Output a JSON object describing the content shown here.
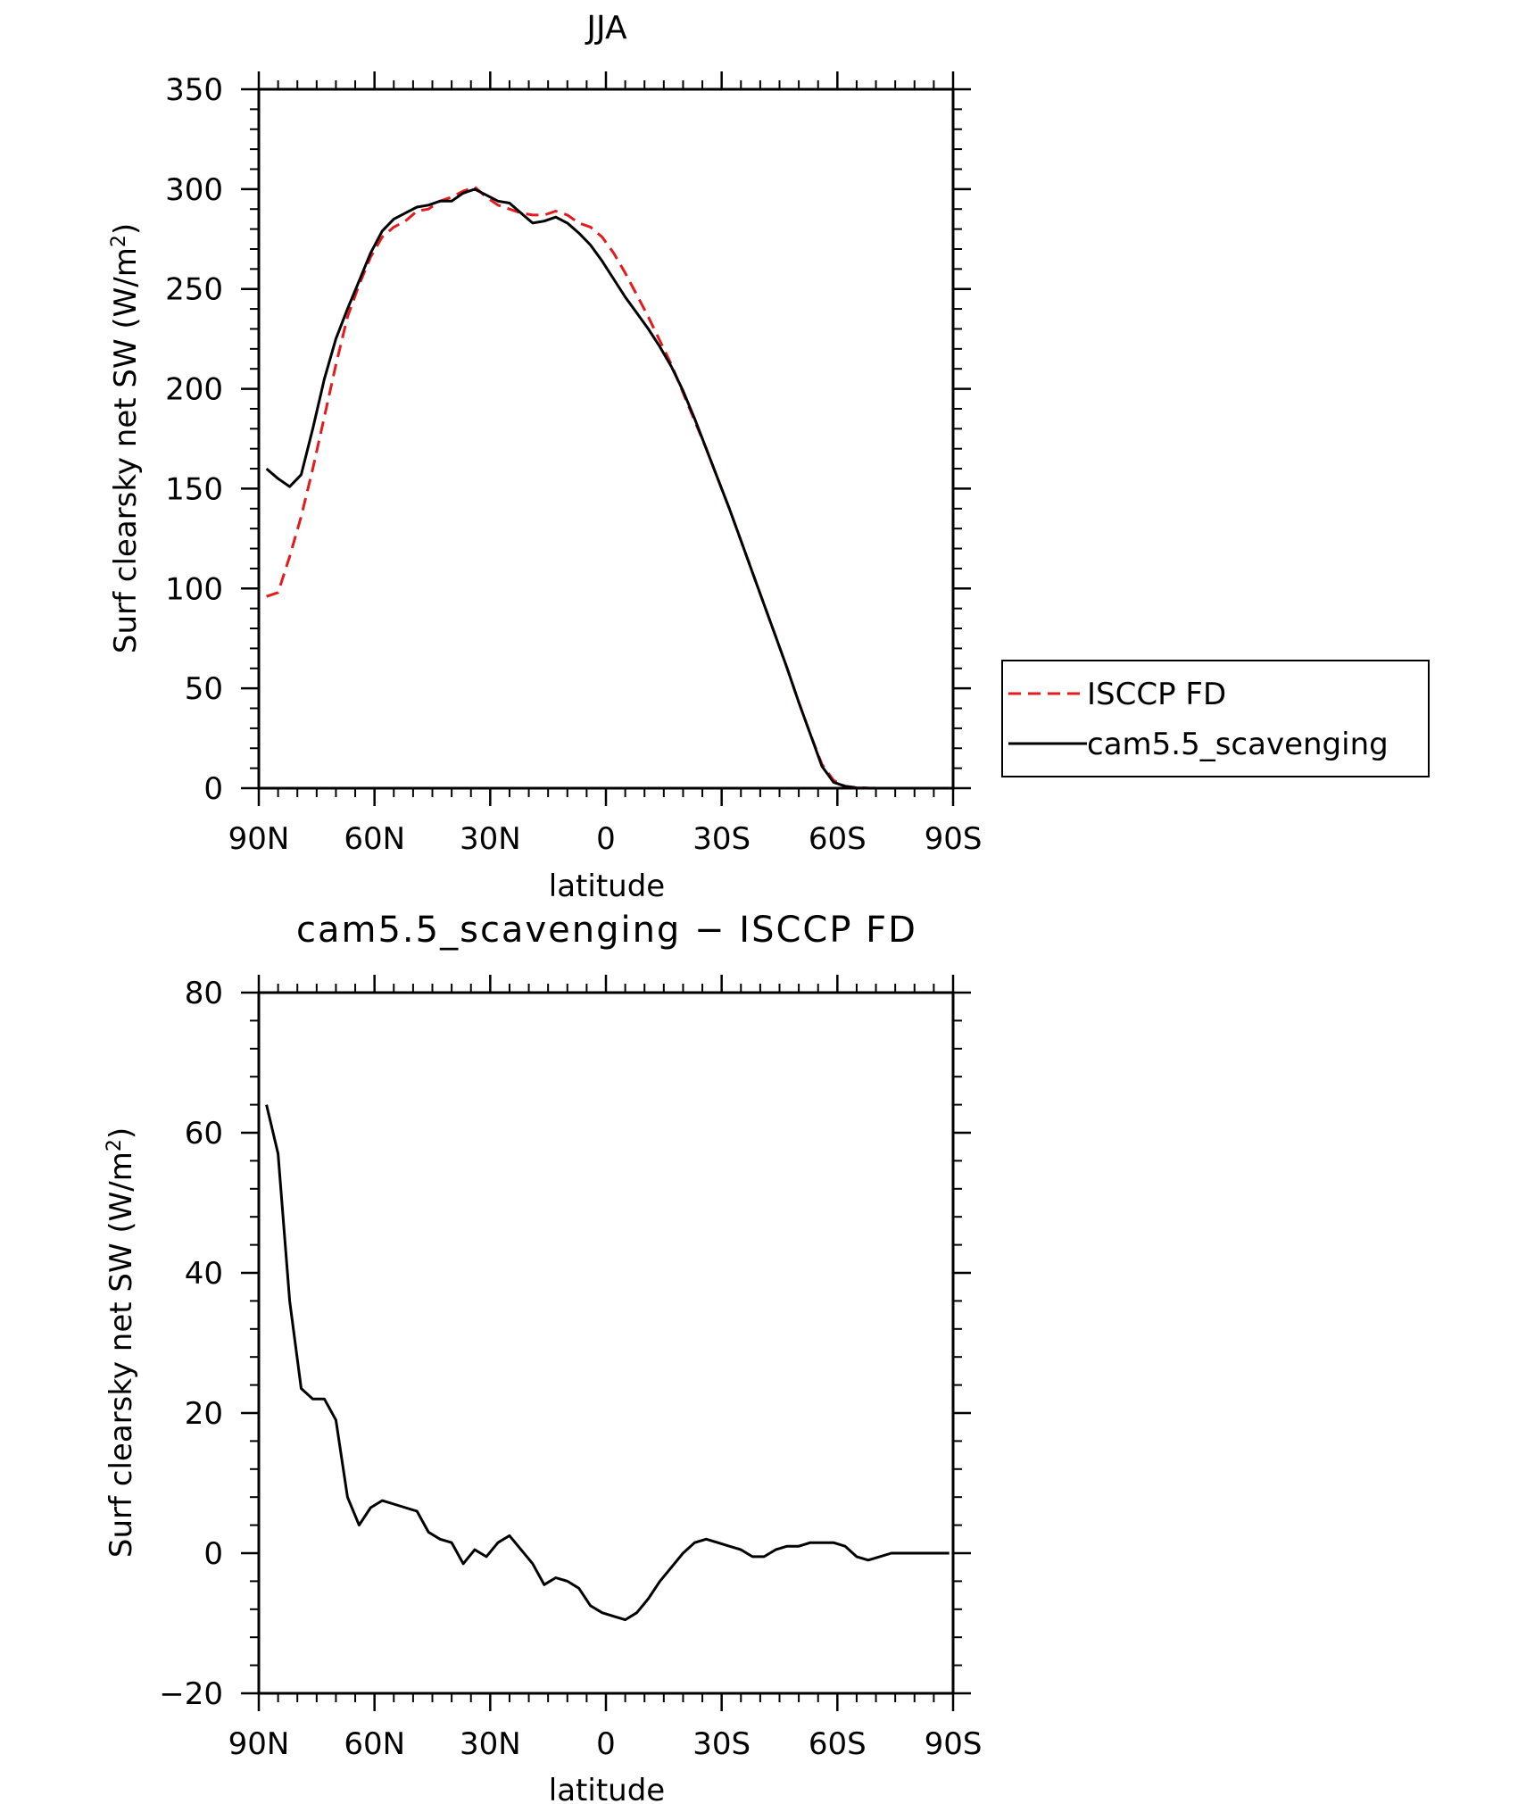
{
  "chart_data": [
    {
      "type": "line",
      "title": "JJA",
      "xlabel": "latitude",
      "ylabel_main": "Surf clearsky net SW (W/m",
      "ylabel_sup": "2",
      "ylabel_close": ")",
      "xlim": [
        90,
        -90
      ],
      "ylim": [
        0,
        350
      ],
      "x_ticks": [
        {
          "v": 90,
          "label": "90N"
        },
        {
          "v": 60,
          "label": "60N"
        },
        {
          "v": 30,
          "label": "30N"
        },
        {
          "v": 0,
          "label": "0"
        },
        {
          "v": -30,
          "label": "30S"
        },
        {
          "v": -60,
          "label": "60S"
        },
        {
          "v": -90,
          "label": "90S"
        }
      ],
      "y_ticks": [
        0,
        50,
        100,
        150,
        200,
        250,
        300,
        350
      ],
      "legend_position": "right",
      "series": [
        {
          "name": "ISCCP FD",
          "color": "#e41a1c",
          "dash": true,
          "x": [
            88,
            85,
            82,
            79,
            76,
            73,
            70,
            67,
            64,
            61,
            58,
            55,
            52,
            49,
            46,
            43,
            40,
            37,
            34,
            31,
            28,
            25,
            22,
            19,
            16,
            13,
            10,
            7,
            4,
            1,
            -2,
            -5,
            -8,
            -11,
            -14,
            -17,
            -20,
            -23,
            -26,
            -29,
            -32,
            -35,
            -38,
            -41,
            -44,
            -47,
            -50,
            -53,
            -56,
            -59,
            -62,
            -65,
            -68,
            -71,
            -74,
            -77,
            -80,
            -83,
            -86,
            -89
          ],
          "y": [
            96,
            98,
            116,
            136,
            160,
            186,
            212,
            236,
            252,
            266,
            276,
            281,
            284,
            289,
            290,
            294,
            296,
            299,
            301,
            296,
            292,
            290,
            288,
            287,
            287,
            289,
            287,
            283,
            281,
            276,
            268,
            258,
            247,
            236,
            224,
            212,
            198,
            184,
            170,
            155,
            140,
            124,
            108,
            92,
            76,
            60,
            43,
            27,
            12,
            4,
            1,
            0.3,
            0.1,
            0,
            0,
            0,
            0,
            0,
            0,
            0
          ]
        },
        {
          "name": "cam5.5_scavenging",
          "color": "#000000",
          "dash": false,
          "x": [
            88,
            85,
            82,
            79,
            76,
            73,
            70,
            67,
            64,
            61,
            58,
            55,
            52,
            49,
            46,
            43,
            40,
            37,
            34,
            31,
            28,
            25,
            22,
            19,
            16,
            13,
            10,
            7,
            4,
            1,
            -2,
            -5,
            -8,
            -11,
            -14,
            -17,
            -20,
            -23,
            -26,
            -29,
            -32,
            -35,
            -38,
            -41,
            -44,
            -47,
            -50,
            -53,
            -56,
            -59,
            -62,
            -65,
            -68,
            -71,
            -74,
            -77,
            -80,
            -83,
            -86,
            -89
          ],
          "y": [
            160,
            155,
            151,
            157,
            180,
            205,
            225,
            240,
            254,
            268,
            279,
            285,
            288,
            291,
            292,
            294,
            294,
            298,
            300,
            297,
            294,
            293,
            288,
            283,
            284,
            286,
            283,
            278,
            272,
            264,
            255,
            246,
            238,
            230,
            221,
            211,
            199,
            185,
            170,
            155,
            140,
            124,
            108,
            92,
            76,
            60,
            43,
            27,
            11,
            3,
            1,
            0.2,
            0,
            0,
            0,
            0,
            0,
            0,
            0,
            0
          ]
        }
      ]
    },
    {
      "type": "line",
      "title": "cam5.5_scavenging − ISCCP FD",
      "xlabel": "latitude",
      "ylabel_main": "Surf clearsky net SW (W/m",
      "ylabel_sup": "2",
      "ylabel_close": ")",
      "xlim": [
        90,
        -90
      ],
      "ylim": [
        -20,
        80
      ],
      "x_ticks": [
        {
          "v": 90,
          "label": "90N"
        },
        {
          "v": 60,
          "label": "60N"
        },
        {
          "v": 30,
          "label": "30N"
        },
        {
          "v": 0,
          "label": "0"
        },
        {
          "v": -30,
          "label": "30S"
        },
        {
          "v": -60,
          "label": "60S"
        },
        {
          "v": -90,
          "label": "90S"
        }
      ],
      "y_ticks": [
        -20,
        0,
        20,
        40,
        60,
        80
      ],
      "series": [
        {
          "color": "#000000",
          "dash": false,
          "x": [
            88,
            85,
            82,
            79,
            76,
            73,
            70,
            67,
            64,
            61,
            58,
            55,
            52,
            49,
            46,
            43,
            40,
            37,
            34,
            31,
            28,
            25,
            22,
            19,
            16,
            13,
            10,
            7,
            4,
            1,
            -2,
            -5,
            -8,
            -11,
            -14,
            -17,
            -20,
            -23,
            -26,
            -29,
            -32,
            -35,
            -38,
            -41,
            -44,
            -47,
            -50,
            -53,
            -56,
            -59,
            -62,
            -65,
            -68,
            -71,
            -74,
            -77,
            -80,
            -83,
            -86,
            -89
          ],
          "y": [
            64,
            57,
            36,
            23.5,
            22,
            22,
            19,
            8,
            4,
            6.5,
            7.5,
            7,
            6.5,
            6,
            3,
            2,
            1.5,
            -1.5,
            0.5,
            -0.5,
            1.5,
            2.5,
            0.5,
            -1.5,
            -4.5,
            -3.5,
            -4,
            -5,
            -7.5,
            -8.5,
            -9,
            -9.5,
            -8.5,
            -6.5,
            -4,
            -2,
            0,
            1.5,
            2,
            1.5,
            1,
            0.5,
            -0.5,
            -0.5,
            0.5,
            1,
            1,
            1.5,
            1.5,
            1.5,
            1,
            -0.5,
            -1,
            -0.5,
            0,
            0,
            0,
            0,
            0,
            0
          ]
        }
      ]
    }
  ]
}
